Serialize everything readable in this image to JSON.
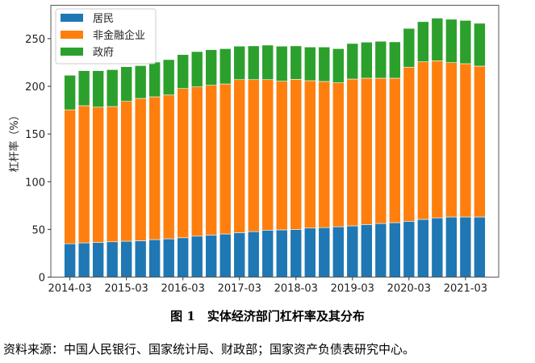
{
  "chart_data": {
    "type": "bar",
    "stacked": true,
    "ylabel": "杠杆率（%）",
    "ylim": [
      0,
      285
    ],
    "yticks": [
      0,
      50,
      100,
      150,
      200,
      250
    ],
    "xtick_labels": [
      "2014-03",
      "2015-03",
      "2016-03",
      "2017-03",
      "2018-03",
      "2019-03",
      "2020-03",
      "2021-03"
    ],
    "categories": [
      "2014-03",
      "2014-06",
      "2014-09",
      "2014-12",
      "2015-03",
      "2015-06",
      "2015-09",
      "2015-12",
      "2016-03",
      "2016-06",
      "2016-09",
      "2016-12",
      "2017-03",
      "2017-06",
      "2017-09",
      "2017-12",
      "2018-03",
      "2018-06",
      "2018-09",
      "2018-12",
      "2019-03",
      "2019-06",
      "2019-09",
      "2019-12",
      "2020-03",
      "2020-06",
      "2020-09",
      "2020-12",
      "2021-03",
      "2021-06"
    ],
    "legend_position": "top-left",
    "grid": false,
    "series": [
      {
        "name": "居民",
        "color": "#1f77b4",
        "values": [
          35.0,
          35.9,
          36.4,
          37.0,
          37.6,
          38.1,
          39.3,
          40.1,
          41.2,
          42.9,
          44.1,
          45.2,
          46.6,
          47.7,
          49.2,
          49.5,
          50.0,
          51.4,
          51.9,
          52.8,
          53.7,
          55.1,
          56.2,
          57.1,
          58.5,
          60.5,
          62.1,
          63.0,
          63.0,
          63.0
        ]
      },
      {
        "name": "非金融企业",
        "color": "#ff7f0e",
        "values": [
          140.4,
          143.8,
          141.8,
          141.8,
          146.6,
          149.2,
          149.7,
          150.8,
          156.5,
          156.5,
          157.0,
          157.3,
          160.4,
          159.3,
          157.8,
          155.9,
          157.3,
          154.5,
          153.2,
          150.9,
          153.9,
          153.4,
          152.3,
          151.4,
          161.6,
          165.2,
          164.7,
          161.8,
          160.7,
          158.2
        ]
      },
      {
        "name": "政府",
        "color": "#2ca02c",
        "values": [
          36.2,
          36.7,
          38.2,
          38.7,
          36.4,
          34.4,
          36.4,
          37.1,
          35.6,
          37.0,
          37.3,
          37.0,
          35.1,
          35.4,
          36.2,
          36.7,
          35.1,
          35.3,
          36.1,
          35.8,
          37.3,
          37.8,
          38.7,
          38.1,
          40.6,
          42.1,
          44.7,
          45.5,
          45.4,
          44.9
        ]
      }
    ]
  },
  "caption": {
    "title": "图 1　实体经济部门杠杆率及其分布",
    "source": "资料来源：中国人民银行、国家统计局、财政部；国家资产负债表研究中心。"
  }
}
